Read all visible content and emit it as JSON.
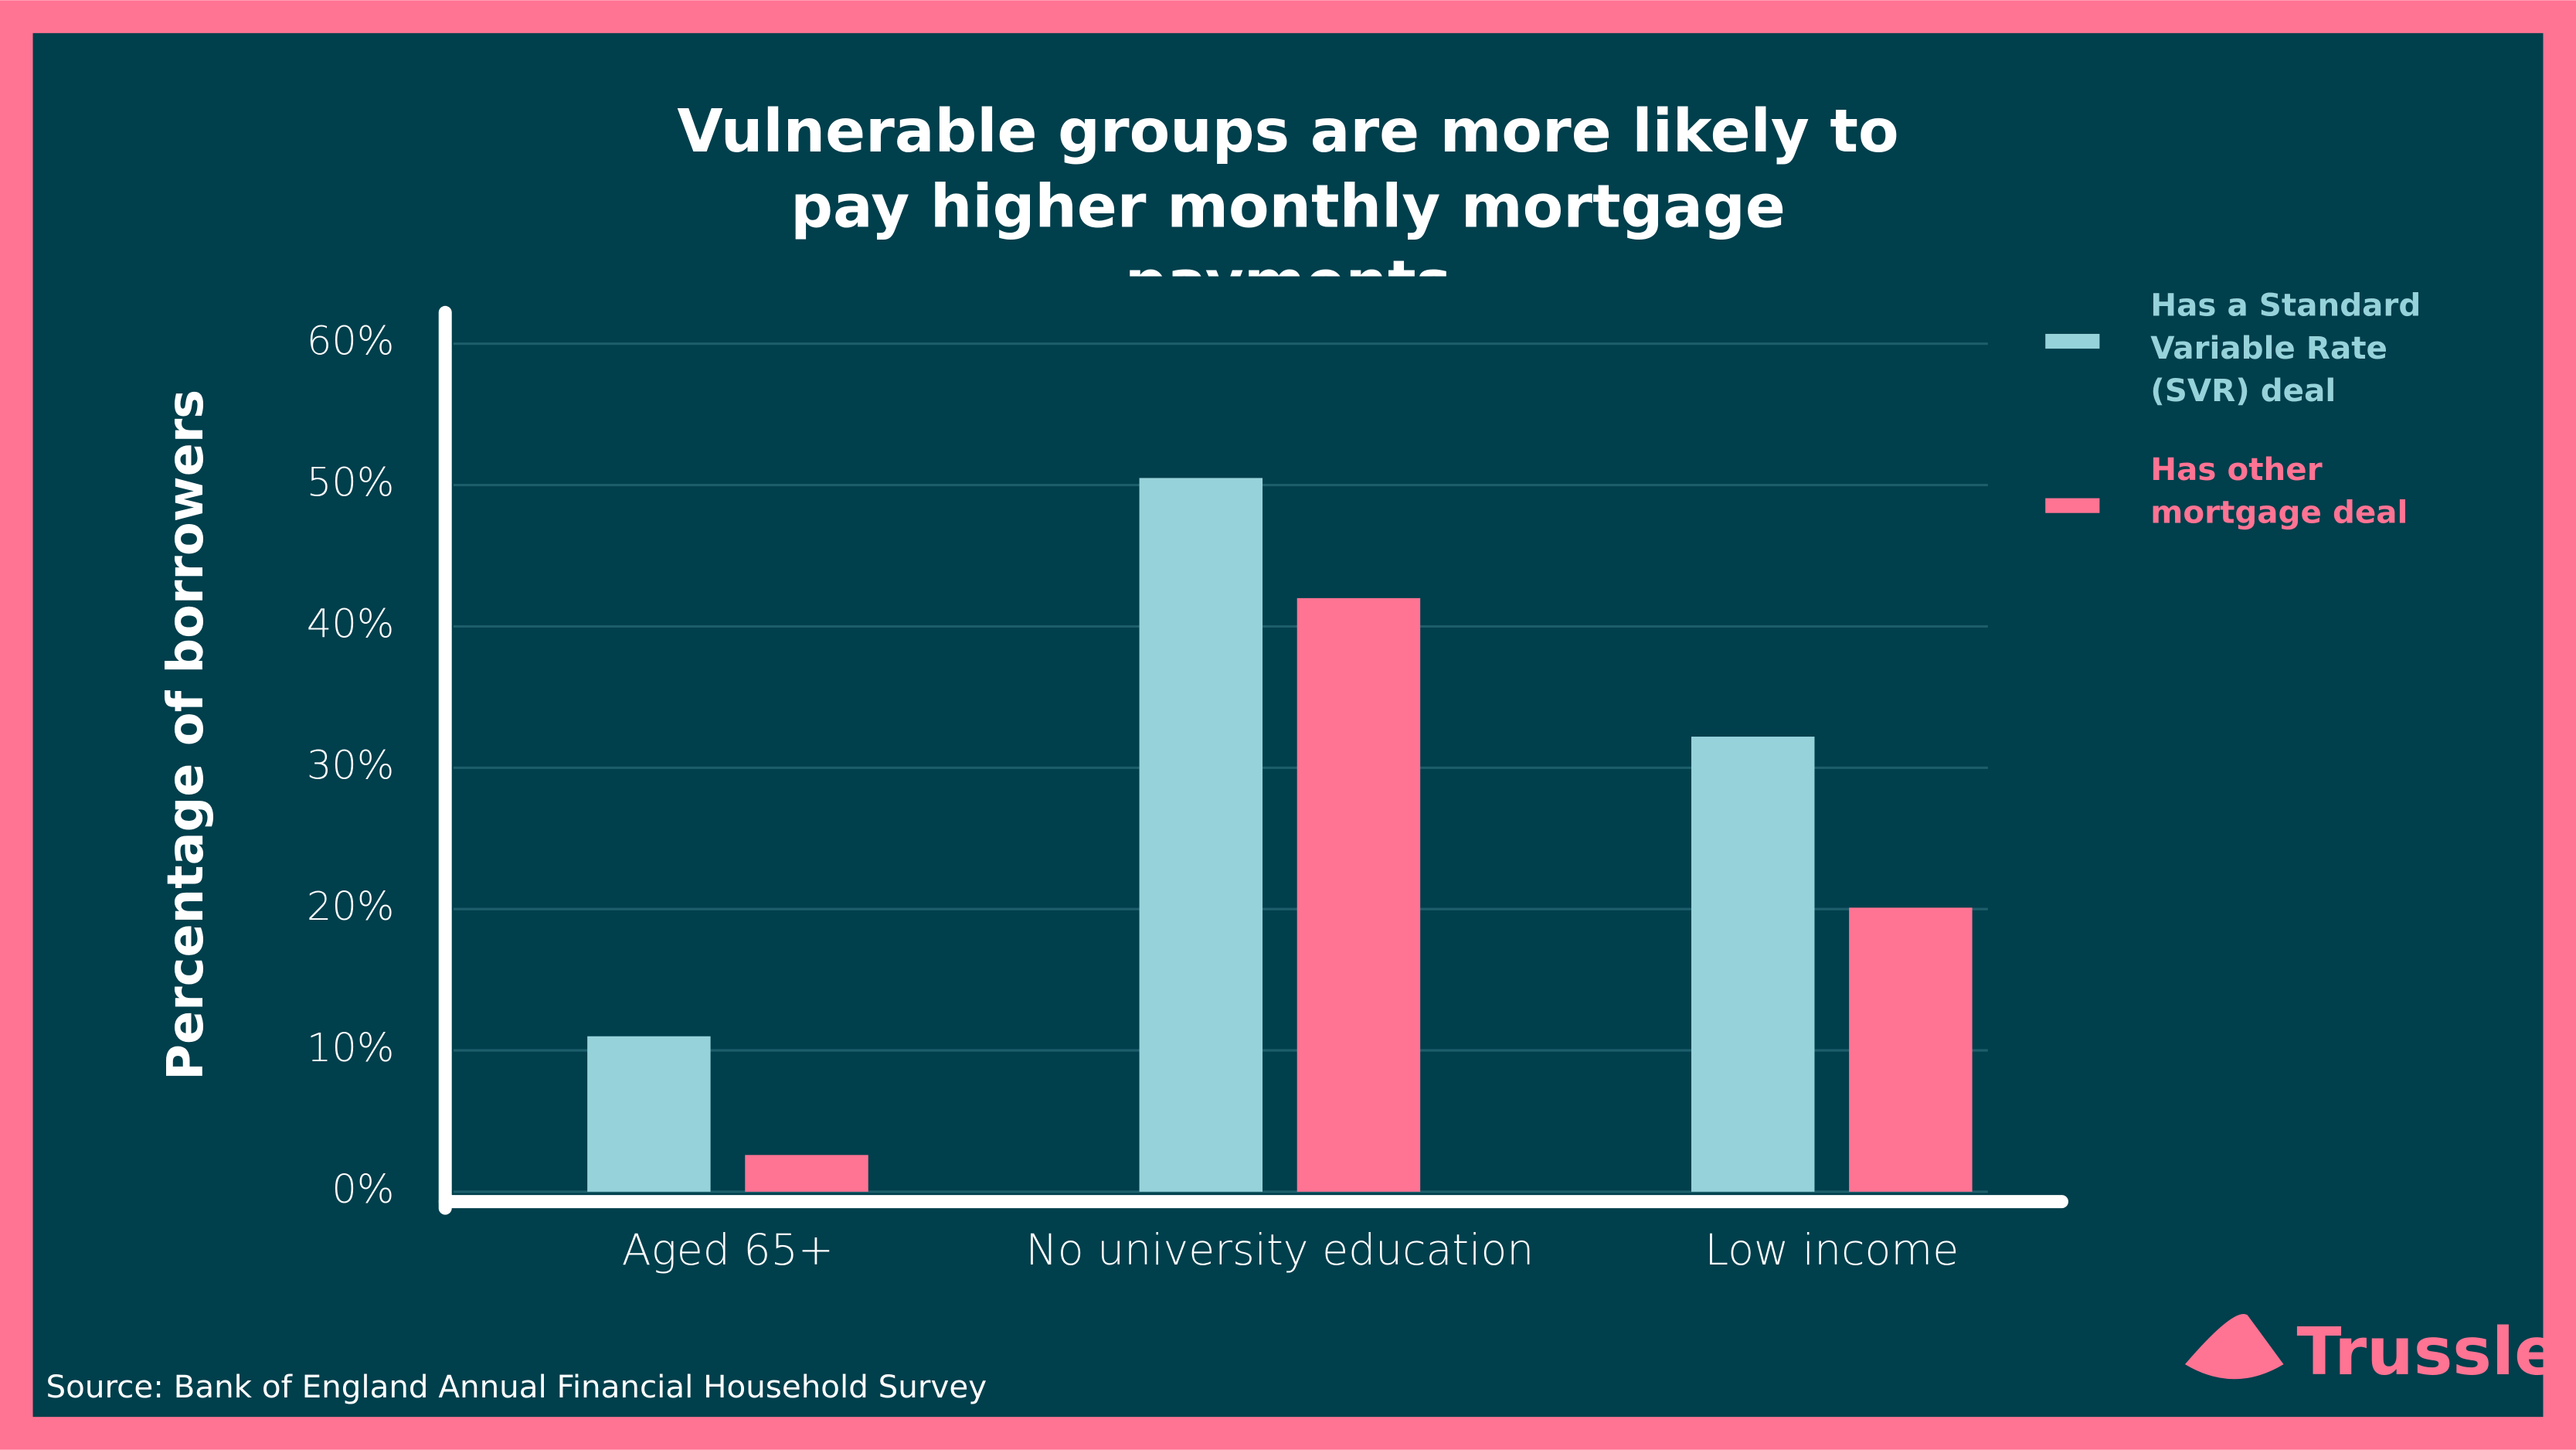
{
  "chart_data": {
    "type": "bar",
    "title": "Vulnerable groups are more likely to pay higher monthly mortgage payments",
    "y_label": "Percentage of borrowers",
    "categories": [
      "Aged 65+",
      "No university education",
      "Low income"
    ],
    "series": [
      {
        "name": "Has a Standard Variable Rate (SVR) deal",
        "color": "#96d2d9",
        "values": [
          11,
          50.5,
          32.2
        ]
      },
      {
        "name": "Has other mortgage deal",
        "color": "#ff7393",
        "values": [
          2.6,
          42,
          20.1
        ]
      }
    ],
    "ylim": [
      0,
      60
    ],
    "yticks": [
      {
        "value": 0,
        "label": "0%"
      },
      {
        "value": 10,
        "label": "10%"
      },
      {
        "value": 20,
        "label": "20%"
      },
      {
        "value": 30,
        "label": "30%"
      },
      {
        "value": 40,
        "label": "40%"
      },
      {
        "value": 50,
        "label": "50%"
      },
      {
        "value": 60,
        "label": "60%"
      }
    ],
    "grid": true,
    "legend": "right",
    "source": "Source:  Bank of England Annual Financial Household Survey",
    "logo": "Trussle"
  }
}
